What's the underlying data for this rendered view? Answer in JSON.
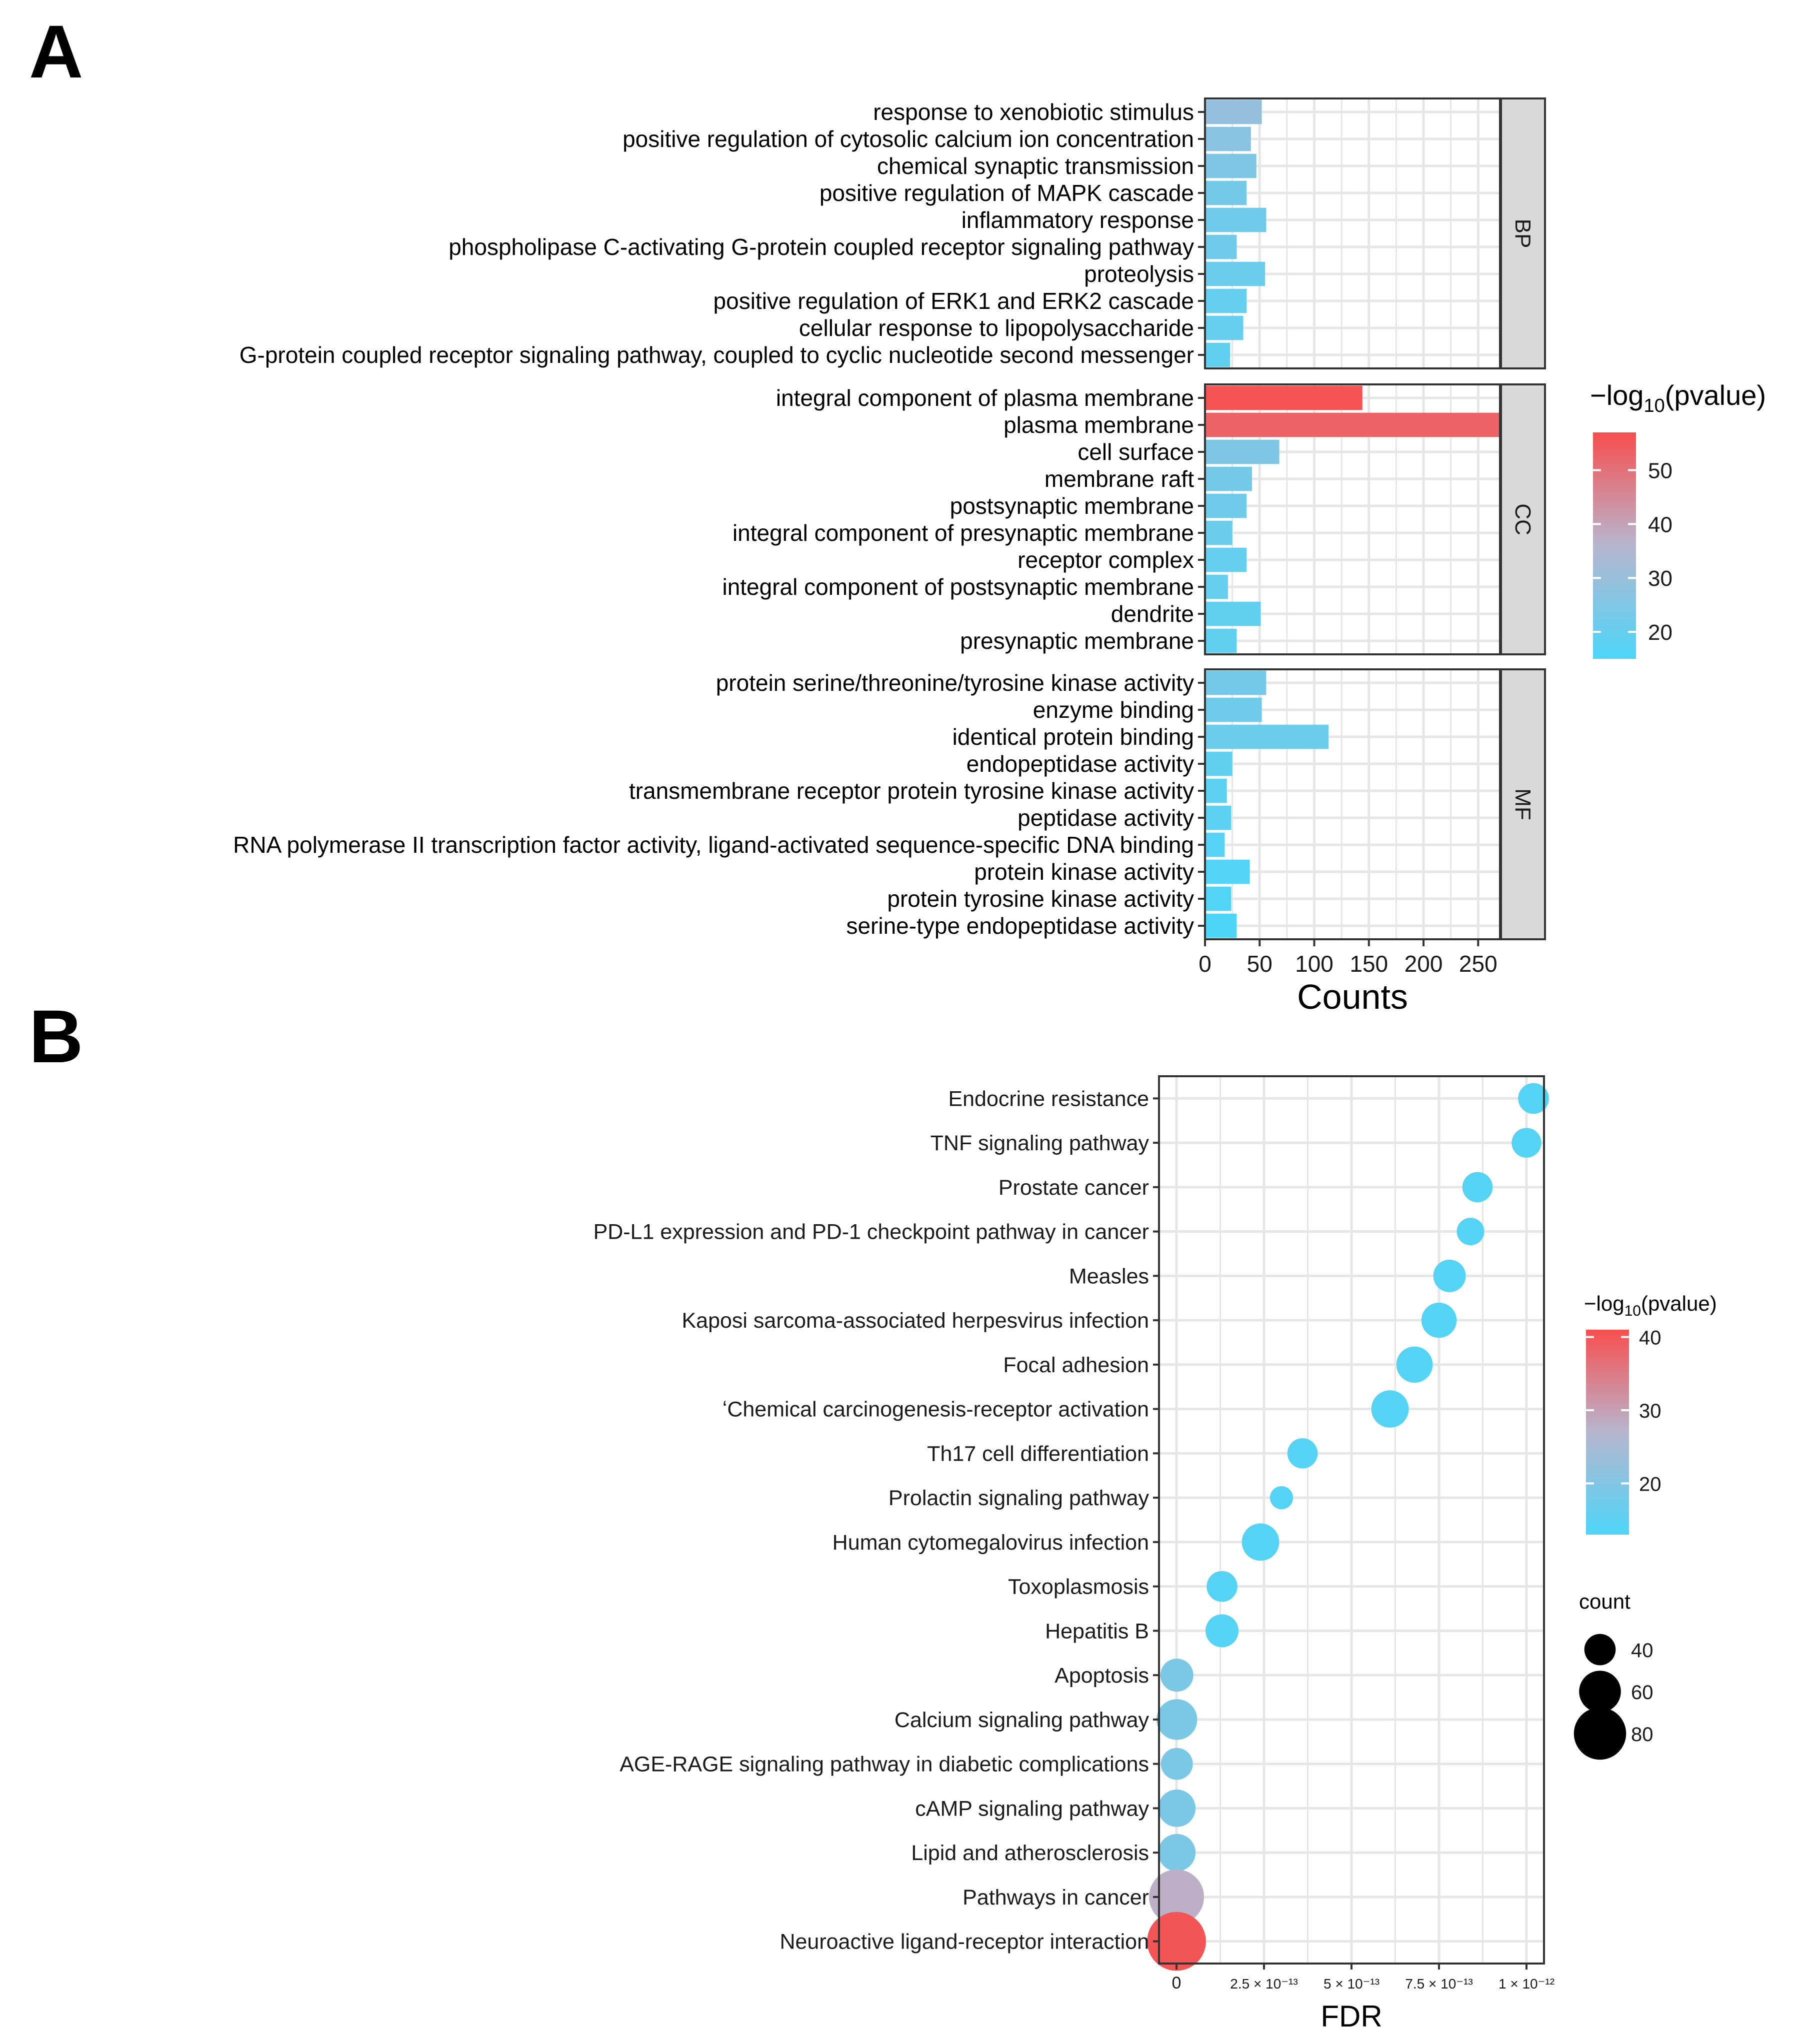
{
  "colors": {
    "low": "#4DD5F8",
    "mid": "#B7B6CF",
    "high": "#F84E4E",
    "grid": "#E6E6E6",
    "strip": "#D9D9D9",
    "border": "#333333"
  },
  "panels": {
    "a": "A",
    "b": "B"
  },
  "chart_data": [
    {
      "type": "bar",
      "orientation": "horizontal",
      "panel": "A",
      "xlabel": "Counts",
      "xlim": [
        0,
        270
      ],
      "xticks": [
        0,
        50,
        100,
        150,
        200,
        250
      ],
      "legend": {
        "title_prefix": "−log",
        "title_sub": "10",
        "title_suffix": "(pvalue)",
        "range": [
          15,
          57
        ],
        "ticks": [
          20,
          30,
          40,
          50
        ]
      },
      "facets": [
        {
          "name": "BP",
          "categories": [
            "response to xenobiotic stimulus",
            "positive regulation of cytosolic calcium ion concentration",
            "chemical synaptic transmission",
            "positive regulation of MAPK cascade",
            "inflammatory response",
            "phospholipase C-activating G-protein coupled receptor signaling pathway",
            "proteolysis",
            "positive regulation of ERK1 and ERK2 cascade",
            "cellular response to lipopolysaccharide",
            "G-protein coupled receptor signaling pathway, coupled to cyclic nucleotide second messenger"
          ],
          "counts": [
            52,
            42,
            47,
            38,
            56,
            29,
            55,
            38,
            35,
            23
          ],
          "neglog10p": [
            29,
            27,
            25,
            23,
            22,
            22,
            21,
            20,
            20,
            19
          ]
        },
        {
          "name": "CC",
          "categories": [
            "integral component of plasma membrane",
            "plasma membrane",
            "cell surface",
            "membrane raft",
            "postsynaptic membrane",
            "integral component of presynaptic membrane",
            "receptor complex",
            "integral component of postsynaptic membrane",
            "dendrite",
            "presynaptic membrane"
          ],
          "counts": [
            144,
            270,
            68,
            43,
            38,
            25,
            38,
            21,
            51,
            29
          ],
          "neglog10p": [
            56,
            53,
            25,
            23,
            22,
            21,
            20,
            20,
            19,
            19
          ]
        },
        {
          "name": "MF",
          "categories": [
            "protein serine/threonine/tyrosine kinase activity",
            "enzyme binding",
            "identical protein binding",
            "endopeptidase activity",
            "transmembrane receptor protein tyrosine kinase activity",
            "peptidase activity",
            "RNA polymerase II transcription factor activity, ligand-activated sequence-specific DNA binding",
            "protein kinase activity",
            "protein tyrosine kinase activity",
            "serine-type endopeptidase activity"
          ],
          "counts": [
            56,
            52,
            113,
            25,
            20,
            24,
            18,
            41,
            24,
            29
          ],
          "neglog10p": [
            23,
            22,
            21,
            19,
            18,
            18,
            17,
            16,
            16,
            15
          ]
        }
      ]
    },
    {
      "type": "scatter",
      "panel": "B",
      "xlabel": "FDR",
      "xlim": [
        -5e-14,
        1.05e-12
      ],
      "xticks": [
        0,
        2.5e-13,
        5e-13,
        7.5e-13,
        1e-12
      ],
      "xtick_labels": [
        "0",
        "2.5 × 10⁻¹³",
        "5 × 10⁻¹³",
        "7.5 × 10⁻¹³",
        "1 × 10⁻¹²"
      ],
      "legend": {
        "color_title_prefix": "−log",
        "color_title_sub": "10",
        "color_title_suffix": "(pvalue)",
        "color_range": [
          13,
          41
        ],
        "color_ticks": [
          20,
          30,
          40
        ],
        "size_title": "count",
        "size_ticks": [
          40,
          60,
          80
        ]
      },
      "categories": [
        "Endocrine resistance",
        "TNF signaling pathway",
        "Prostate cancer",
        "PD-L1 expression and PD-1 checkpoint pathway in cancer",
        "Measles",
        "Kaposi sarcoma-associated herpesvirus infection",
        "Focal adhesion",
        "ʻChemical carcinogenesis-receptor activation",
        "Th17 cell differentiation",
        "Prolactin signaling pathway",
        "Human cytomegalovirus infection",
        "Toxoplasmosis",
        "Hepatitis B",
        "Apoptosis",
        "Calcium signaling pathway",
        "AGE-RAGE signaling pathway in diabetic complications",
        "cAMP signaling pathway",
        "Lipid and atherosclerosis",
        "Pathways in cancer",
        "Neuroactive ligand-receptor interaction"
      ],
      "fdr": [
        1.02e-12,
        1e-12,
        8.6e-13,
        8.4e-13,
        7.8e-13,
        7.5e-13,
        6.8e-13,
        6.1e-13,
        3.6e-13,
        3e-13,
        2.4e-13,
        1.3e-13,
        1.3e-13,
        1e-15,
        1e-15,
        1e-15,
        1e-15,
        1e-15,
        1e-16,
        1e-17
      ],
      "count": [
        36,
        34,
        35,
        30,
        39,
        44,
        46,
        48,
        35,
        22,
        48,
        36,
        40,
        40,
        54,
        38,
        48,
        48,
        80,
        87
      ],
      "neglog10p": [
        14,
        14,
        14,
        14,
        14,
        14,
        14,
        14,
        14,
        14,
        14,
        14,
        14,
        19,
        19,
        19,
        19,
        19,
        28,
        40
      ]
    }
  ]
}
